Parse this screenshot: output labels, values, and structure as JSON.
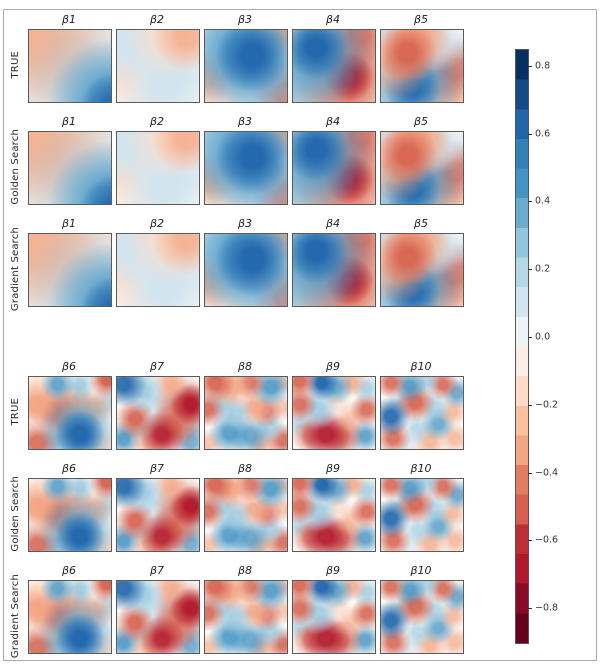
{
  "figure": {
    "blocks": [
      {
        "rows": [
          {
            "label": "TRUE"
          },
          {
            "label": "Golden Search"
          },
          {
            "label": "Gradient Search"
          }
        ],
        "columns": [
          {
            "title": "β1"
          },
          {
            "title": "β2"
          },
          {
            "title": "β3"
          },
          {
            "title": "β4"
          },
          {
            "title": "β5"
          }
        ]
      },
      {
        "rows": [
          {
            "label": "TRUE"
          },
          {
            "label": "Golden Search"
          },
          {
            "label": "Gradient Search"
          }
        ],
        "columns": [
          {
            "title": "β6"
          },
          {
            "title": "β7"
          },
          {
            "title": "β8"
          },
          {
            "title": "β9"
          },
          {
            "title": "β10"
          }
        ]
      }
    ]
  },
  "colorbar": {
    "value_range": [
      -0.9,
      0.85
    ],
    "ticks": [
      {
        "value": 0.8,
        "label": "0.8"
      },
      {
        "value": 0.6,
        "label": "0.6"
      },
      {
        "value": 0.4,
        "label": "0.4"
      },
      {
        "value": 0.2,
        "label": "0.2"
      },
      {
        "value": 0.0,
        "label": "0.0"
      },
      {
        "value": -0.2,
        "label": "−0.2"
      },
      {
        "value": -0.4,
        "label": "−0.4"
      },
      {
        "value": -0.6,
        "label": "−0.6"
      },
      {
        "value": -0.8,
        "label": "−0.8"
      }
    ],
    "palette_top_to_bottom": [
      "#053061",
      "#134b86",
      "#2166ac",
      "#3480b9",
      "#4393c3",
      "#6aacd0",
      "#92c5de",
      "#b6d7e8",
      "#d1e5f0",
      "#eef3f5",
      "#fbede2",
      "#fddbc7",
      "#f8c29f",
      "#f4a582",
      "#e27c63",
      "#d6604d",
      "#bc2f34",
      "#b2182b",
      "#8a0b25",
      "#67001f"
    ]
  },
  "colors": {
    "panel_bg": "#faf9f6",
    "B5": "#053061",
    "B4": "#2166ac",
    "B3": "#4393c3",
    "B2": "#92c5de",
    "B1": "#cfe3ef",
    "R1": "#fddbc7",
    "R2": "#f4a582",
    "R3": "#d6604d",
    "R4": "#b2182b"
  },
  "chart_data": {
    "type": "heatmap",
    "colormap": "RdBu (blue = positive, red = negative)",
    "value_range": [
      -0.9,
      0.85
    ],
    "colorbar_ticks": [
      0.8,
      0.6,
      0.4,
      0.2,
      0.0,
      -0.2,
      -0.4,
      -0.6,
      -0.8
    ],
    "layout_hint": "two blocks of 3 rows x 5 columns of smooth 2D coefficient fields; rows are TRUE, Golden Search, Gradient Search estimates of the same field per column; colorbar at right",
    "blocks": [
      {
        "columns": [
          "β1",
          "β2",
          "β3",
          "β4",
          "β5"
        ],
        "rows": [
          "TRUE",
          "Golden Search",
          "Gradient Search"
        ],
        "character": "smooth low-frequency fields"
      },
      {
        "columns": [
          "β6",
          "β7",
          "β8",
          "β9",
          "β10"
        ],
        "rows": [
          "TRUE",
          "Golden Search",
          "Gradient Search"
        ],
        "character": "high-frequency multi-blob fields"
      }
    ],
    "fields": {
      "β1": {
        "blobs": [
          [
            105,
            108,
            30,
            "B4",
            0.9
          ],
          [
            100,
            100,
            55,
            "B3",
            0.85
          ],
          [
            80,
            85,
            70,
            "B2",
            0.55
          ],
          [
            -5,
            -5,
            90,
            "R2",
            0.55
          ],
          [
            10,
            20,
            55,
            "R2",
            0.5
          ],
          [
            30,
            5,
            60,
            "R1",
            0.7
          ]
        ]
      },
      "β2": {
        "blobs": [
          [
            85,
            8,
            30,
            "R2",
            0.75
          ],
          [
            65,
            5,
            40,
            "R1",
            0.8
          ],
          [
            12,
            12,
            40,
            "B1",
            0.9
          ],
          [
            40,
            30,
            45,
            "B1",
            0.5
          ],
          [
            5,
            55,
            25,
            "R1",
            0.8
          ],
          [
            60,
            75,
            45,
            "B1",
            0.9
          ],
          [
            90,
            50,
            30,
            "B1",
            0.5
          ],
          [
            25,
            90,
            40,
            "R1",
            0.5
          ]
        ]
      },
      "β3": {
        "blobs": [
          [
            58,
            35,
            32,
            "B4",
            0.95
          ],
          [
            50,
            35,
            55,
            "B3",
            0.8
          ],
          [
            30,
            20,
            50,
            "B2",
            0.7
          ],
          [
            75,
            55,
            45,
            "B2",
            0.6
          ],
          [
            98,
            2,
            25,
            "R2",
            0.9
          ],
          [
            2,
            65,
            25,
            "R2",
            0.85
          ],
          [
            100,
            88,
            30,
            "R3",
            0.8
          ],
          [
            20,
            98,
            30,
            "R1",
            0.7
          ],
          [
            60,
            95,
            25,
            "B1",
            0.6
          ]
        ]
      },
      "β4": {
        "blobs": [
          [
            28,
            24,
            28,
            "B4",
            0.95
          ],
          [
            30,
            30,
            50,
            "B3",
            0.8
          ],
          [
            15,
            55,
            45,
            "B2",
            0.6
          ],
          [
            68,
            65,
            22,
            "R4",
            0.95
          ],
          [
            65,
            62,
            45,
            "R3",
            0.85
          ],
          [
            55,
            85,
            45,
            "R2",
            0.7
          ],
          [
            82,
            5,
            28,
            "R3",
            0.8
          ],
          [
            100,
            30,
            25,
            "R1",
            0.7
          ],
          [
            5,
            95,
            30,
            "B2",
            0.65
          ],
          [
            45,
            3,
            25,
            "B1",
            0.6
          ]
        ]
      },
      "β5": {
        "blobs": [
          [
            32,
            32,
            26,
            "R3",
            0.9
          ],
          [
            40,
            15,
            35,
            "R2",
            0.85
          ],
          [
            18,
            50,
            30,
            "R2",
            0.7
          ],
          [
            48,
            5,
            25,
            "R2",
            0.6
          ],
          [
            3,
            3,
            22,
            "B1",
            0.9
          ],
          [
            70,
            18,
            25,
            "B1",
            0.8
          ],
          [
            38,
            80,
            24,
            "B4",
            0.85
          ],
          [
            45,
            72,
            40,
            "B3",
            0.8
          ],
          [
            15,
            90,
            35,
            "B2",
            0.7
          ],
          [
            90,
            55,
            28,
            "R3",
            0.75
          ],
          [
            95,
            30,
            22,
            "B1",
            0.7
          ],
          [
            80,
            95,
            32,
            "R2",
            0.75
          ],
          [
            65,
            50,
            30,
            "B1",
            0.5
          ]
        ]
      },
      "β6": {
        "blobs": [
          [
            62,
            80,
            22,
            "B4",
            0.95
          ],
          [
            60,
            75,
            35,
            "B3",
            0.8
          ],
          [
            95,
            4,
            16,
            "R3",
            0.95
          ],
          [
            35,
            10,
            15,
            "B3",
            0.8
          ],
          [
            62,
            12,
            14,
            "B2",
            0.8
          ],
          [
            8,
            38,
            22,
            "R2",
            0.95
          ],
          [
            28,
            45,
            20,
            "R3",
            0.7
          ],
          [
            52,
            35,
            18,
            "R2",
            0.85
          ],
          [
            40,
            60,
            18,
            "R2",
            0.7
          ],
          [
            78,
            42,
            18,
            "R2",
            0.7
          ],
          [
            10,
            92,
            20,
            "R3",
            0.85
          ],
          [
            95,
            35,
            14,
            "B2",
            0.6
          ],
          [
            92,
            95,
            16,
            "R1",
            0.8
          ],
          [
            30,
            92,
            14,
            "B2",
            0.5
          ],
          [
            12,
            10,
            16,
            "R1",
            0.7
          ]
        ]
      },
      "β7": {
        "blobs": [
          [
            8,
            10,
            20,
            "B4",
            0.9
          ],
          [
            30,
            18,
            20,
            "B2",
            0.8
          ],
          [
            65,
            8,
            16,
            "R2",
            0.8
          ],
          [
            90,
            38,
            18,
            "R4",
            0.95
          ],
          [
            82,
            42,
            28,
            "R3",
            0.8
          ],
          [
            22,
            58,
            17,
            "R3",
            0.9
          ],
          [
            55,
            80,
            20,
            "R4",
            0.85
          ],
          [
            68,
            70,
            22,
            "R3",
            0.75
          ],
          [
            40,
            92,
            18,
            "R2",
            0.7
          ],
          [
            8,
            86,
            16,
            "B3",
            0.85
          ],
          [
            90,
            90,
            16,
            "B3",
            0.7
          ],
          [
            50,
            45,
            25,
            "B1",
            0.8
          ],
          [
            30,
            75,
            14,
            "B2",
            0.5
          ],
          [
            95,
            70,
            12,
            "B2",
            0.5
          ]
        ]
      },
      "β8": {
        "blobs": [
          [
            12,
            8,
            17,
            "R3",
            0.9
          ],
          [
            32,
            14,
            18,
            "R2",
            0.9
          ],
          [
            55,
            8,
            15,
            "R3",
            0.8
          ],
          [
            80,
            14,
            17,
            "B3",
            0.85
          ],
          [
            95,
            8,
            10,
            "R2",
            0.6
          ],
          [
            3,
            45,
            16,
            "R3",
            0.85
          ],
          [
            22,
            38,
            16,
            "B2",
            0.7
          ],
          [
            38,
            52,
            16,
            "B2",
            0.7
          ],
          [
            60,
            42,
            16,
            "R2",
            0.85
          ],
          [
            75,
            48,
            14,
            "R3",
            0.7
          ],
          [
            95,
            42,
            12,
            "R2",
            0.6
          ],
          [
            30,
            78,
            18,
            "B3",
            0.85
          ],
          [
            55,
            82,
            18,
            "B3",
            0.75
          ],
          [
            80,
            70,
            14,
            "B2",
            0.7
          ],
          [
            95,
            88,
            15,
            "R3",
            0.85
          ],
          [
            70,
            92,
            14,
            "R2",
            0.7
          ],
          [
            5,
            92,
            13,
            "R2",
            0.6
          ]
        ]
      },
      "β9": {
        "blobs": [
          [
            8,
            6,
            15,
            "R3",
            0.9
          ],
          [
            35,
            8,
            16,
            "B4",
            0.95
          ],
          [
            52,
            14,
            16,
            "B3",
            0.75
          ],
          [
            72,
            8,
            13,
            "R2",
            0.8
          ],
          [
            90,
            16,
            13,
            "B2",
            0.7
          ],
          [
            8,
            38,
            16,
            "R3",
            0.85
          ],
          [
            30,
            45,
            18,
            "B2",
            0.8
          ],
          [
            55,
            38,
            14,
            "R1",
            0.7
          ],
          [
            90,
            45,
            15,
            "R3",
            0.85
          ],
          [
            70,
            58,
            15,
            "R2",
            0.6
          ],
          [
            40,
            80,
            22,
            "R4",
            0.9
          ],
          [
            60,
            82,
            18,
            "R3",
            0.8
          ],
          [
            20,
            82,
            16,
            "R3",
            0.7
          ],
          [
            88,
            82,
            15,
            "B3",
            0.8
          ],
          [
            8,
            65,
            12,
            "B2",
            0.6
          ],
          [
            65,
            95,
            12,
            "B1",
            0.6
          ]
        ]
      },
      "β10": {
        "blobs": [
          [
            12,
            8,
            14,
            "R3",
            0.85
          ],
          [
            35,
            12,
            15,
            "B3",
            0.85
          ],
          [
            55,
            6,
            13,
            "B2",
            0.7
          ],
          [
            75,
            10,
            14,
            "R3",
            0.85
          ],
          [
            93,
            22,
            14,
            "B3",
            0.75
          ],
          [
            42,
            35,
            17,
            "R3",
            0.9
          ],
          [
            65,
            42,
            15,
            "B2",
            0.65
          ],
          [
            12,
            55,
            17,
            "B4",
            0.9
          ],
          [
            25,
            40,
            14,
            "B2",
            0.6
          ],
          [
            88,
            48,
            13,
            "R2",
            0.7
          ],
          [
            70,
            65,
            15,
            "B3",
            0.75
          ],
          [
            45,
            72,
            14,
            "B2",
            0.6
          ],
          [
            15,
            85,
            16,
            "R3",
            0.85
          ],
          [
            60,
            90,
            15,
            "R2",
            0.75
          ],
          [
            90,
            85,
            14,
            "R2",
            0.7
          ],
          [
            35,
            95,
            12,
            "B1",
            0.6
          ]
        ]
      }
    }
  }
}
